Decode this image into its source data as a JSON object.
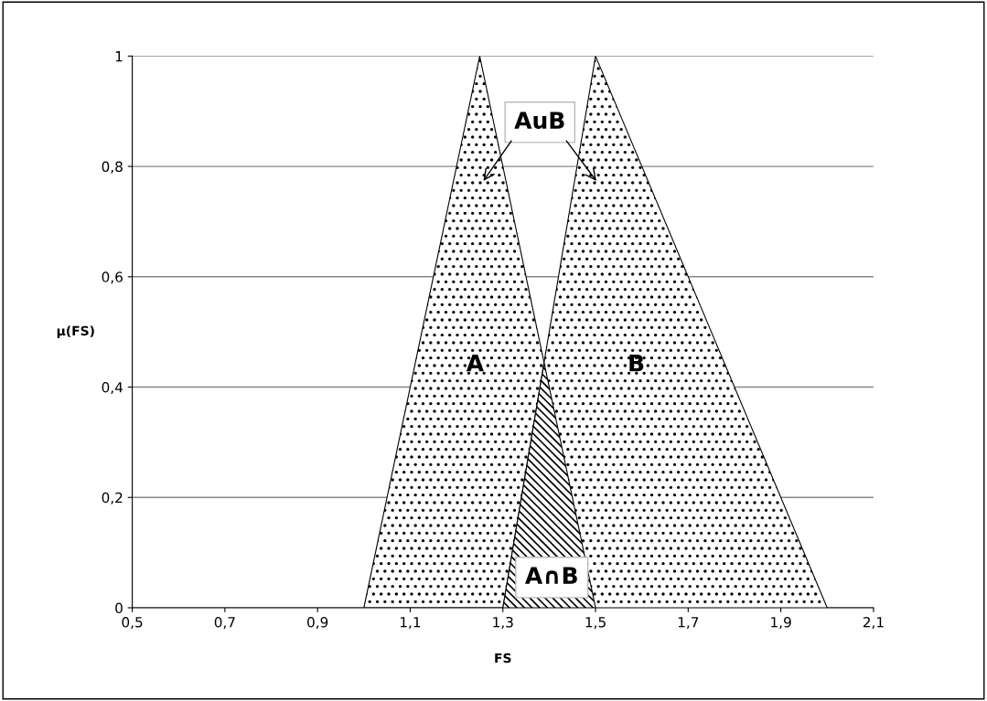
{
  "chart_data": {
    "type": "area",
    "xlabel": "FS",
    "ylabel": "μ(FS)",
    "series": [
      {
        "x": [
          1.0,
          1.25,
          1.5
        ],
        "values": [
          0,
          1,
          0
        ],
        "color": "#000000"
      },
      {
        "x": [
          1.3,
          1.5,
          2.0
        ],
        "values": [
          0,
          1,
          0
        ],
        "color": "#000000"
      },
      {
        "x": [
          1.3,
          1.389,
          1.5
        ],
        "values": [
          0,
          0.444,
          0
        ],
        "color": "#000000"
      }
    ],
    "annotations": [
      "A",
      "B",
      "AuB",
      "A∩B"
    ],
    "xlim": [
      0.5,
      2.1
    ],
    "ylim": [
      0,
      1
    ],
    "xticks": [
      {
        "value": 0.5,
        "label": "0,5"
      },
      {
        "value": 0.7,
        "label": "0,7"
      },
      {
        "value": 0.9,
        "label": "0,9"
      },
      {
        "value": 1.1,
        "label": "1,1"
      },
      {
        "value": 1.3,
        "label": "1,3"
      },
      {
        "value": 1.5,
        "label": "1,5"
      },
      {
        "value": 1.7,
        "label": "1,7"
      },
      {
        "value": 1.9,
        "label": "1,9"
      },
      {
        "value": 2.1,
        "label": "2,1"
      }
    ],
    "yticks": [
      0,
      {
        "value": 0.2,
        "label": "0,2"
      },
      {
        "value": 0.4,
        "label": "0,4"
      },
      {
        "value": 0.6,
        "label": "0,6"
      },
      {
        "value": 0.8,
        "label": "0,8"
      },
      1
    ],
    "grid": "y"
  }
}
